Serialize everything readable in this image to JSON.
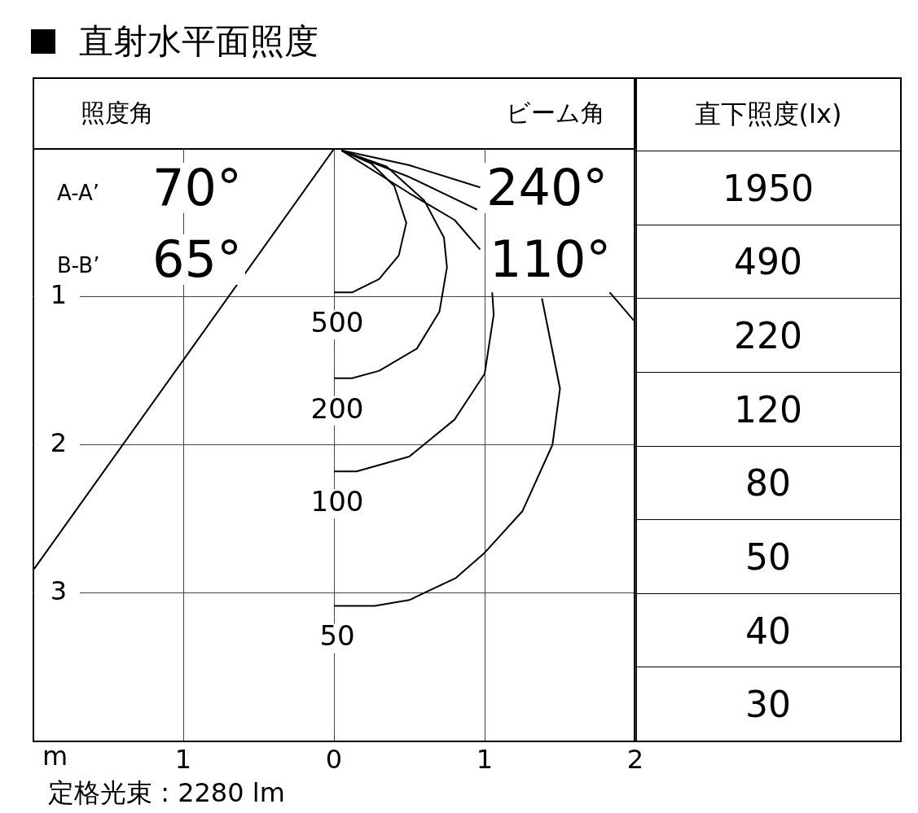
{
  "chart_data": [
    {
      "type": "line",
      "title": "直射水平面照度",
      "xlabel": "m",
      "xlim": [
        -2,
        2
      ],
      "ylim": [
        4,
        0
      ],
      "xticks": [
        {
          "value": -1,
          "label": "1"
        },
        0,
        1,
        2
      ],
      "yticks": [
        1,
        2,
        3
      ],
      "grid": true,
      "legend": false,
      "marker": "none",
      "line_style": "solid",
      "series": [
        {
          "name": "500",
          "color": "#000000",
          "x": [
            0.05,
            0.25,
            0.4,
            0.48,
            0.43,
            0.3,
            0.12,
            0
          ],
          "values": [
            0.01,
            0.1,
            0.25,
            0.5,
            0.72,
            0.88,
            0.97,
            0.97
          ]
        },
        {
          "name": "200",
          "color": "#000000",
          "x": [
            0.05,
            0.35,
            0.6,
            0.73,
            0.75,
            0.7,
            0.55,
            0.3,
            0.12,
            0
          ],
          "values": [
            0.01,
            0.12,
            0.35,
            0.6,
            0.8,
            1.1,
            1.35,
            1.5,
            1.55,
            1.55
          ]
        },
        {
          "name": "100",
          "color": "#000000",
          "x": [
            0.05,
            0.5,
            0.8,
            0.97,
            1.01,
            1.05,
            1.06,
            1.0,
            0.8,
            0.5,
            0.15,
            0
          ],
          "values": [
            0.01,
            0.3,
            0.48,
            0.68,
            null,
            0.97,
            1.12,
            1.52,
            1.83,
            2.08,
            2.18,
            2.18
          ]
        },
        {
          "name": "50",
          "color": "#000000",
          "x": [
            0.05,
            0.5,
            0.95,
            1.2,
            1.38,
            1.5,
            1.45,
            1.25,
            1.0,
            0.81,
            0.5,
            0.27,
            0
          ],
          "values": [
            0.01,
            0.19,
            0.41,
            null,
            1.01,
            1.62,
            2.0,
            2.45,
            2.73,
            2.9,
            3.05,
            3.09,
            3.09
          ]
        },
        {
          "type": "line",
          "color": "#000000",
          "x": [
            0.05,
            0.5,
            0.97,
            1.4,
            1.83,
            1.99
          ],
          "values": [
            0.01,
            0.11,
            0.26,
            null,
            0.97,
            1.16
          ]
        },
        {
          "type": "line",
          "color": "#000000",
          "x": [
            0,
            -1.99
          ],
          "values": [
            0,
            2.84
          ]
        }
      ],
      "annotations": [
        "照度角",
        "A-A’",
        "70°",
        "B-B’",
        "65°",
        "ビーム角",
        "240°",
        "110°",
        "定格光束 : 2280 lm"
      ]
    },
    {
      "type": "other",
      "title": "直下照度(lx)",
      "values": [
        1950,
        490,
        220,
        120,
        80,
        50,
        40,
        30
      ],
      "data_labels": true
    }
  ]
}
